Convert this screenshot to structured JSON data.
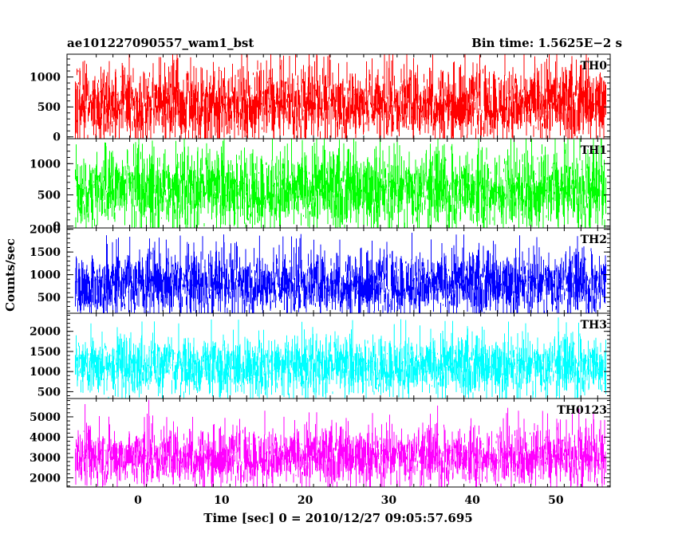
{
  "header": {
    "left_title": "ae101227090557_wam1_bst",
    "right_title": "Bin time: 1.5625E−2 s"
  },
  "chart_data": {
    "type": "line",
    "title": "ae101227090557_wam1_bst",
    "subtitle": "Bin time: 1.5625E−2 s",
    "xlabel": "Time [sec] 0 = 2010/12/27 09:05:57.695",
    "ylabel": "Counts/sec",
    "xlim": [
      -8.5,
      56.5
    ],
    "x_ticks": [
      0,
      10,
      20,
      30,
      40,
      50
    ],
    "x_data_range": [
      -7.5,
      56
    ],
    "grid": false,
    "panels": [
      {
        "name": "TH0",
        "color": "#ff0000",
        "ylim": [
          -30,
          1380
        ],
        "y_ticks": [
          0,
          500,
          1000
        ],
        "mean": 560,
        "typical_range": [
          50,
          1100
        ],
        "peak": 1380
      },
      {
        "name": "TH1",
        "color": "#00ff00",
        "ylim": [
          -30,
          1400
        ],
        "y_ticks": [
          0,
          500,
          1000
        ],
        "mean": 580,
        "typical_range": [
          80,
          1150
        ],
        "peak": 1330
      },
      {
        "name": "TH2",
        "color": "#0000ff",
        "ylim": [
          150,
          2030
        ],
        "y_ticks": [
          500,
          1000,
          1500,
          2000
        ],
        "mean": 800,
        "typical_range": [
          250,
          1450
        ],
        "peak": 1930
      },
      {
        "name": "TH3",
        "color": "#00ffff",
        "ylim": [
          330,
          2450
        ],
        "y_ticks": [
          500,
          1000,
          1500,
          2000
        ],
        "mean": 1130,
        "typical_range": [
          500,
          1750
        ],
        "peak": 2360
      },
      {
        "name": "TH0123",
        "color": "#ff00ff",
        "ylim": [
          1550,
          5900
        ],
        "y_ticks": [
          2000,
          3000,
          4000,
          5000
        ],
        "mean": 3050,
        "typical_range": [
          1900,
          4300
        ],
        "peak": 5850
      }
    ]
  }
}
